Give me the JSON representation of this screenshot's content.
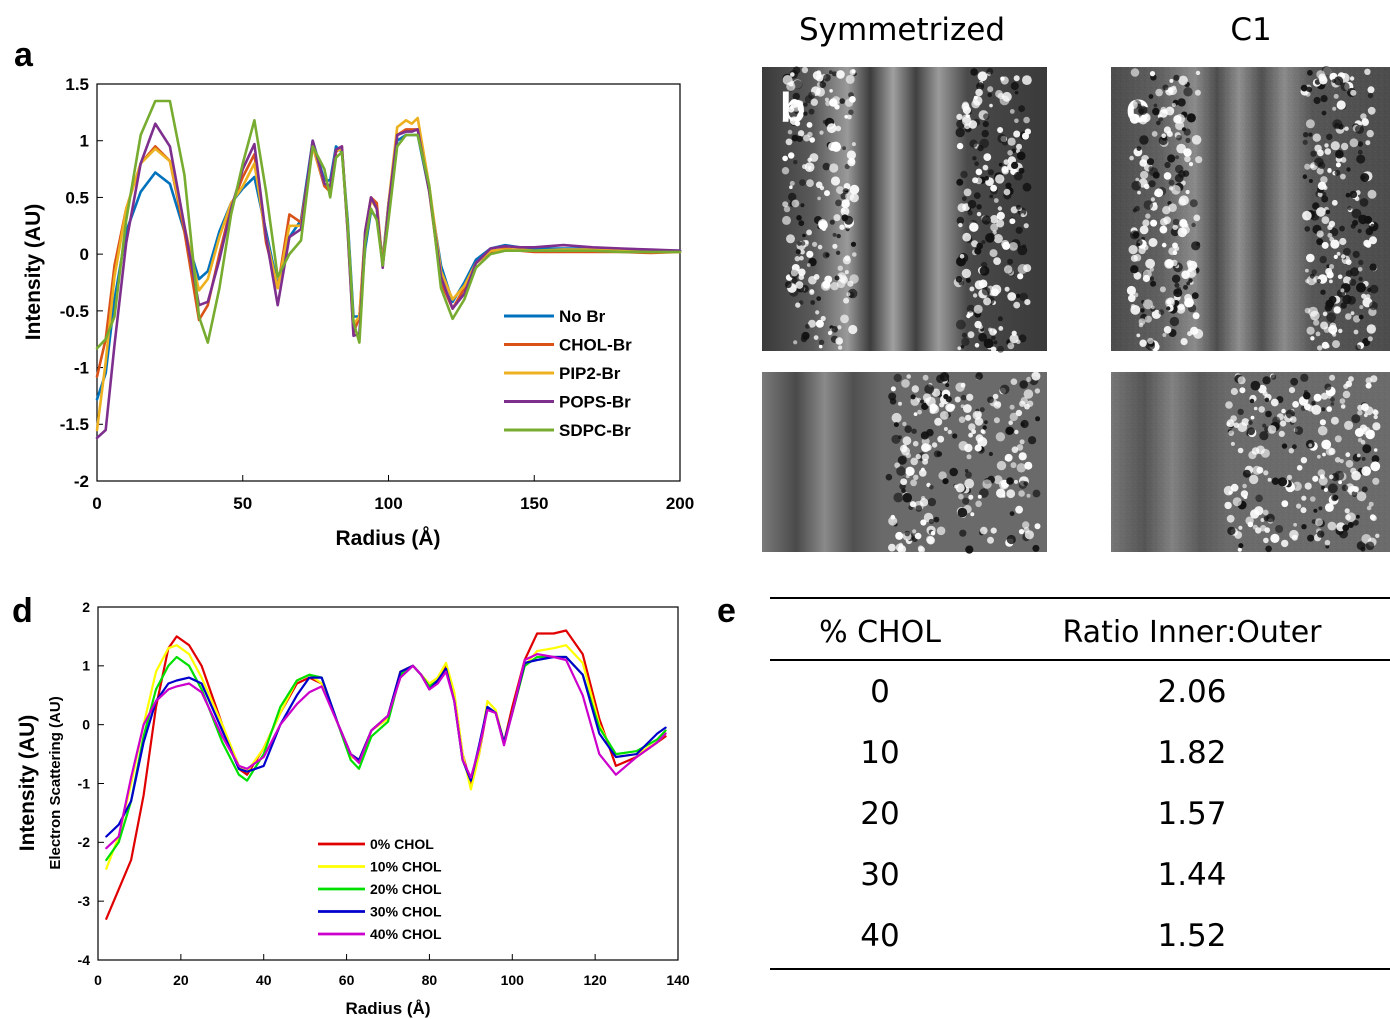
{
  "panels": {
    "a": "a",
    "b": "b",
    "c": "c",
    "d": "d",
    "e": "e"
  },
  "cryo": {
    "symmetrized_title": "Symmetrized",
    "c1_title": "C1"
  },
  "table": {
    "headers": [
      "% CHOL",
      "Ratio Inner:Outer"
    ],
    "rows": [
      [
        "0",
        "2.06"
      ],
      [
        "10",
        "1.82"
      ],
      [
        "20",
        "1.57"
      ],
      [
        "30",
        "1.44"
      ],
      [
        "40",
        "1.52"
      ]
    ]
  },
  "chart_data": [
    {
      "type": "line",
      "panel": "a",
      "xlabel": "Radius (Å)",
      "ylabel": "Intensity (AU)",
      "xlim": [
        0,
        200
      ],
      "ylim": [
        -2,
        1.5
      ],
      "xticks": [
        0,
        50,
        100,
        150,
        200
      ],
      "yticks": [
        1.5,
        1,
        0.5,
        0,
        -0.5,
        -1,
        -1.5,
        -2
      ],
      "legend_position": "lower-right",
      "grid": false,
      "series": [
        {
          "name": "No Br",
          "color": "#0072BD",
          "x": [
            0,
            3,
            6,
            10,
            15,
            20,
            25,
            30,
            35,
            38,
            42,
            46,
            50,
            54,
            58,
            62,
            66,
            70,
            74,
            78,
            80,
            82,
            84,
            86,
            88,
            90,
            92,
            94,
            96,
            98,
            100,
            103,
            106,
            108,
            110,
            114,
            118,
            122,
            126,
            130,
            135,
            140,
            145,
            150,
            160,
            170,
            180,
            190,
            200
          ],
          "y": [
            -1.28,
            -1.05,
            -0.4,
            0.2,
            0.55,
            0.72,
            0.62,
            0.2,
            -0.22,
            -0.15,
            0.2,
            0.45,
            0.58,
            0.68,
            0.2,
            -0.28,
            0.15,
            0.3,
            1.0,
            0.65,
            0.65,
            0.95,
            0.9,
            0.3,
            -0.55,
            -0.55,
            0.05,
            0.38,
            0.32,
            -0.05,
            0.45,
            1.0,
            1.05,
            1.05,
            1.05,
            0.55,
            -0.1,
            -0.42,
            -0.25,
            -0.05,
            0.05,
            0.08,
            0.06,
            0.05,
            0.05,
            0.05,
            0.04,
            0.03,
            0.03
          ]
        },
        {
          "name": "CHOL-Br",
          "color": "#D95319",
          "x": [
            0,
            3,
            6,
            10,
            15,
            20,
            25,
            30,
            35,
            38,
            42,
            46,
            50,
            54,
            58,
            62,
            66,
            70,
            74,
            78,
            80,
            82,
            84,
            86,
            88,
            90,
            92,
            94,
            96,
            98,
            100,
            103,
            106,
            108,
            110,
            114,
            118,
            122,
            126,
            130,
            135,
            140,
            145,
            150,
            160,
            170,
            180,
            190,
            200
          ],
          "y": [
            -1.08,
            -0.75,
            -0.1,
            0.4,
            0.8,
            0.95,
            0.82,
            0.2,
            -0.58,
            -0.45,
            0.0,
            0.42,
            0.68,
            0.88,
            0.1,
            -0.3,
            0.35,
            0.28,
            0.95,
            0.6,
            0.55,
            0.9,
            0.95,
            0.2,
            -0.7,
            -0.55,
            0.2,
            0.5,
            0.45,
            -0.1,
            0.4,
            1.05,
            1.1,
            1.1,
            1.1,
            0.55,
            -0.25,
            -0.48,
            -0.3,
            -0.08,
            0.02,
            0.05,
            0.03,
            0.02,
            0.02,
            0.02,
            0.02,
            0.01,
            0.02
          ]
        },
        {
          "name": "PIP2-Br",
          "color": "#EDB120",
          "x": [
            0,
            3,
            6,
            10,
            15,
            20,
            25,
            30,
            35,
            38,
            42,
            46,
            50,
            54,
            58,
            62,
            66,
            70,
            74,
            78,
            80,
            82,
            84,
            86,
            88,
            90,
            92,
            94,
            96,
            98,
            100,
            103,
            106,
            108,
            110,
            114,
            118,
            122,
            126,
            130,
            135,
            140,
            145,
            150,
            160,
            170,
            180,
            190,
            200
          ],
          "y": [
            -1.55,
            -0.95,
            -0.2,
            0.4,
            0.8,
            0.93,
            0.82,
            0.25,
            -0.32,
            -0.22,
            0.15,
            0.45,
            0.6,
            0.8,
            0.15,
            -0.3,
            0.25,
            0.25,
            0.95,
            0.62,
            0.6,
            0.92,
            0.92,
            0.25,
            -0.62,
            -0.55,
            0.15,
            0.48,
            0.4,
            -0.08,
            0.45,
            1.12,
            1.18,
            1.15,
            1.2,
            0.6,
            -0.15,
            -0.4,
            -0.28,
            -0.08,
            0.03,
            0.04,
            0.04,
            0.03,
            0.04,
            0.04,
            0.03,
            0.02,
            0.02
          ]
        },
        {
          "name": "POPS-Br",
          "color": "#7E2F8E",
          "x": [
            0,
            3,
            6,
            10,
            15,
            20,
            25,
            30,
            35,
            38,
            42,
            46,
            50,
            54,
            58,
            62,
            66,
            70,
            74,
            78,
            80,
            82,
            84,
            86,
            88,
            90,
            92,
            94,
            96,
            98,
            100,
            103,
            106,
            108,
            110,
            114,
            118,
            122,
            126,
            130,
            135,
            140,
            145,
            150,
            160,
            170,
            180,
            190,
            200
          ],
          "y": [
            -1.62,
            -1.55,
            -0.8,
            0.1,
            0.8,
            1.15,
            0.95,
            0.25,
            -0.45,
            -0.42,
            -0.05,
            0.4,
            0.75,
            0.97,
            0.15,
            -0.45,
            0.15,
            0.22,
            1.0,
            0.62,
            0.6,
            0.92,
            0.95,
            0.2,
            -0.72,
            -0.7,
            0.2,
            0.5,
            0.4,
            -0.12,
            0.42,
            1.05,
            1.08,
            1.08,
            1.1,
            0.55,
            -0.2,
            -0.48,
            -0.35,
            -0.08,
            0.05,
            0.07,
            0.06,
            0.06,
            0.08,
            0.06,
            0.05,
            0.04,
            0.03
          ]
        },
        {
          "name": "SDPC-Br",
          "color": "#77AC30",
          "x": [
            0,
            3,
            6,
            10,
            15,
            20,
            25,
            30,
            35,
            38,
            42,
            46,
            50,
            54,
            58,
            62,
            66,
            70,
            74,
            78,
            80,
            82,
            84,
            86,
            88,
            90,
            92,
            94,
            96,
            98,
            100,
            103,
            106,
            108,
            110,
            114,
            118,
            122,
            126,
            130,
            135,
            140,
            145,
            150,
            160,
            170,
            180,
            190,
            200
          ],
          "y": [
            -0.83,
            -0.75,
            -0.55,
            0.3,
            1.05,
            1.35,
            1.35,
            0.7,
            -0.55,
            -0.78,
            -0.3,
            0.35,
            0.8,
            1.18,
            0.55,
            -0.2,
            0.0,
            0.12,
            0.95,
            0.75,
            0.5,
            0.85,
            0.9,
            0.25,
            -0.6,
            -0.78,
            0.1,
            0.4,
            0.3,
            -0.1,
            0.3,
            0.95,
            1.05,
            1.05,
            1.05,
            0.6,
            -0.3,
            -0.57,
            -0.4,
            -0.12,
            0.0,
            0.03,
            0.03,
            0.03,
            0.03,
            0.03,
            0.02,
            0.02,
            0.02
          ]
        }
      ]
    },
    {
      "type": "line",
      "panel": "d",
      "xlabel": "Radius (Å)",
      "ylabel": "Intensity (AU)",
      "ylabel2": "Electron Scattering (AU)",
      "xlim": [
        0,
        140
      ],
      "ylim": [
        -4,
        2
      ],
      "xticks": [
        0,
        20,
        40,
        60,
        80,
        100,
        120,
        140
      ],
      "yticks": [
        2,
        1,
        0,
        -1,
        -2,
        -3,
        -4
      ],
      "legend_position": "lower-center",
      "grid": false,
      "series": [
        {
          "name": "0% CHOL",
          "color": "#E00000",
          "x": [
            2,
            5,
            8,
            11,
            14,
            17,
            19,
            22,
            25,
            30,
            34,
            36,
            40,
            44,
            48,
            51,
            54,
            58,
            61,
            63,
            66,
            70,
            73,
            76,
            78,
            80,
            82,
            84,
            86,
            88,
            90,
            92,
            94,
            96,
            98,
            100,
            103,
            106,
            110,
            113,
            117,
            121,
            125,
            130,
            135,
            137
          ],
          "y": [
            -3.3,
            -2.8,
            -2.3,
            -1.2,
            0.3,
            1.3,
            1.5,
            1.35,
            1.0,
            0.0,
            -0.75,
            -0.85,
            -0.4,
            0.2,
            0.7,
            0.8,
            0.7,
            0.0,
            -0.5,
            -0.6,
            -0.1,
            0.15,
            0.9,
            1.0,
            0.85,
            0.65,
            0.75,
            1.0,
            0.5,
            -0.5,
            -1.0,
            -0.5,
            0.3,
            0.2,
            -0.3,
            0.3,
            1.1,
            1.55,
            1.55,
            1.6,
            1.2,
            0.1,
            -0.7,
            -0.55,
            -0.3,
            -0.2
          ]
        },
        {
          "name": "10% CHOL",
          "color": "#FFFF00",
          "x": [
            2,
            5,
            8,
            11,
            14,
            17,
            19,
            22,
            25,
            30,
            34,
            36,
            40,
            44,
            48,
            51,
            54,
            58,
            61,
            63,
            66,
            70,
            73,
            76,
            78,
            80,
            82,
            84,
            86,
            88,
            90,
            92,
            94,
            96,
            98,
            100,
            103,
            106,
            110,
            113,
            117,
            121,
            125,
            130,
            135,
            137
          ],
          "y": [
            -2.45,
            -1.9,
            -1.0,
            0.0,
            0.9,
            1.3,
            1.35,
            1.2,
            0.8,
            0.0,
            -0.7,
            -0.8,
            -0.4,
            0.2,
            0.75,
            0.85,
            0.7,
            0.0,
            -0.55,
            -0.6,
            -0.1,
            0.1,
            0.9,
            1.0,
            0.85,
            0.7,
            0.8,
            1.05,
            0.55,
            -0.5,
            -1.1,
            -0.5,
            0.4,
            0.25,
            -0.3,
            0.2,
            1.0,
            1.25,
            1.3,
            1.35,
            1.05,
            0.0,
            -0.55,
            -0.5,
            -0.3,
            -0.15
          ]
        },
        {
          "name": "20% CHOL",
          "color": "#00E000",
          "x": [
            2,
            5,
            8,
            11,
            14,
            17,
            19,
            22,
            25,
            30,
            34,
            36,
            40,
            44,
            48,
            51,
            54,
            58,
            61,
            63,
            66,
            70,
            73,
            76,
            78,
            80,
            82,
            84,
            86,
            88,
            90,
            92,
            94,
            96,
            98,
            100,
            103,
            106,
            110,
            113,
            117,
            121,
            125,
            130,
            135,
            137
          ],
          "y": [
            -2.3,
            -2.0,
            -1.3,
            -0.2,
            0.6,
            1.0,
            1.15,
            1.0,
            0.6,
            -0.3,
            -0.85,
            -0.95,
            -0.5,
            0.3,
            0.75,
            0.85,
            0.8,
            0.0,
            -0.6,
            -0.75,
            -0.2,
            0.05,
            0.85,
            1.0,
            0.85,
            0.65,
            0.75,
            0.95,
            0.4,
            -0.6,
            -0.95,
            -0.4,
            0.3,
            0.2,
            -0.3,
            0.2,
            1.0,
            1.15,
            1.15,
            1.15,
            0.85,
            -0.05,
            -0.5,
            -0.45,
            -0.25,
            -0.1
          ]
        },
        {
          "name": "30% CHOL",
          "color": "#0000CC",
          "x": [
            2,
            5,
            8,
            11,
            14,
            17,
            19,
            22,
            25,
            30,
            34,
            36,
            40,
            44,
            48,
            51,
            54,
            58,
            61,
            63,
            66,
            70,
            73,
            76,
            78,
            80,
            82,
            84,
            86,
            88,
            90,
            92,
            94,
            96,
            98,
            100,
            103,
            106,
            110,
            113,
            117,
            121,
            125,
            130,
            135,
            137
          ],
          "y": [
            -1.9,
            -1.7,
            -1.3,
            -0.3,
            0.4,
            0.7,
            0.75,
            0.8,
            0.7,
            -0.1,
            -0.75,
            -0.8,
            -0.7,
            0.0,
            0.5,
            0.8,
            0.8,
            0.0,
            -0.5,
            -0.6,
            -0.1,
            0.15,
            0.9,
            1.0,
            0.85,
            0.6,
            0.75,
            0.95,
            0.4,
            -0.6,
            -0.95,
            -0.35,
            0.3,
            0.2,
            -0.3,
            0.2,
            1.05,
            1.1,
            1.15,
            1.15,
            0.85,
            -0.15,
            -0.55,
            -0.5,
            -0.15,
            -0.05
          ]
        },
        {
          "name": "40% CHOL",
          "color": "#CC00CC",
          "x": [
            2,
            5,
            8,
            11,
            14,
            17,
            19,
            22,
            25,
            30,
            34,
            36,
            40,
            44,
            48,
            51,
            54,
            58,
            61,
            63,
            66,
            70,
            73,
            76,
            78,
            80,
            82,
            84,
            86,
            88,
            90,
            92,
            94,
            96,
            98,
            100,
            103,
            106,
            110,
            113,
            117,
            121,
            125,
            130,
            135,
            137
          ],
          "y": [
            -2.1,
            -1.9,
            -0.9,
            0.0,
            0.4,
            0.6,
            0.65,
            0.7,
            0.55,
            -0.2,
            -0.7,
            -0.75,
            -0.55,
            0.0,
            0.35,
            0.55,
            0.65,
            0.0,
            -0.5,
            -0.65,
            -0.1,
            0.15,
            0.8,
            1.0,
            0.85,
            0.6,
            0.7,
            0.9,
            0.4,
            -0.6,
            -0.9,
            -0.4,
            0.25,
            0.2,
            -0.35,
            0.2,
            1.1,
            1.2,
            1.15,
            1.1,
            0.5,
            -0.5,
            -0.85,
            -0.55,
            -0.3,
            -0.15
          ]
        }
      ]
    }
  ]
}
